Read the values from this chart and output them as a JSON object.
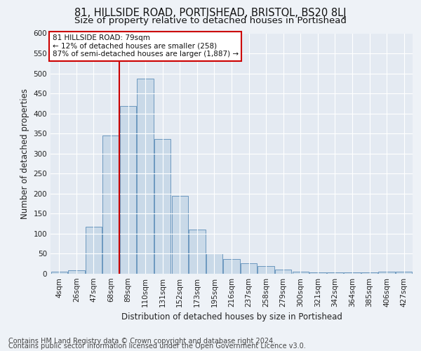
{
  "title": "81, HILLSIDE ROAD, PORTISHEAD, BRISTOL, BS20 8LJ",
  "subtitle": "Size of property relative to detached houses in Portishead",
  "xlabel": "Distribution of detached houses by size in Portishead",
  "ylabel": "Number of detached properties",
  "categories": [
    "4sqm",
    "26sqm",
    "47sqm",
    "68sqm",
    "89sqm",
    "110sqm",
    "131sqm",
    "152sqm",
    "173sqm",
    "195sqm",
    "216sqm",
    "237sqm",
    "258sqm",
    "279sqm",
    "300sqm",
    "321sqm",
    "342sqm",
    "364sqm",
    "385sqm",
    "406sqm",
    "427sqm"
  ],
  "values": [
    5,
    8,
    118,
    345,
    418,
    487,
    337,
    194,
    110,
    50,
    36,
    26,
    19,
    10,
    5,
    4,
    3,
    4,
    4,
    5,
    5
  ],
  "bar_color": "#c9d9e8",
  "bar_edge_color": "#5b8db8",
  "vline_x": 3.5,
  "vline_color": "#cc0000",
  "annotation_line1": "81 HILLSIDE ROAD: 79sqm",
  "annotation_line2": "← 12% of detached houses are smaller (258)",
  "annotation_line3": "87% of semi-detached houses are larger (1,887) →",
  "annotation_box_color": "#ffffff",
  "annotation_box_edge": "#cc0000",
  "ylim": [
    0,
    600
  ],
  "yticks": [
    0,
    50,
    100,
    150,
    200,
    250,
    300,
    350,
    400,
    450,
    500,
    550,
    600
  ],
  "footer_line1": "Contains HM Land Registry data © Crown copyright and database right 2024.",
  "footer_line2": "Contains public sector information licensed under the Open Government Licence v3.0.",
  "bg_color": "#eef2f7",
  "plot_bg_color": "#e4eaf2",
  "grid_color": "#ffffff",
  "title_fontsize": 10.5,
  "subtitle_fontsize": 9.5,
  "axis_label_fontsize": 8.5,
  "tick_fontsize": 7.5,
  "footer_fontsize": 7,
  "annotation_fontsize": 7.5
}
